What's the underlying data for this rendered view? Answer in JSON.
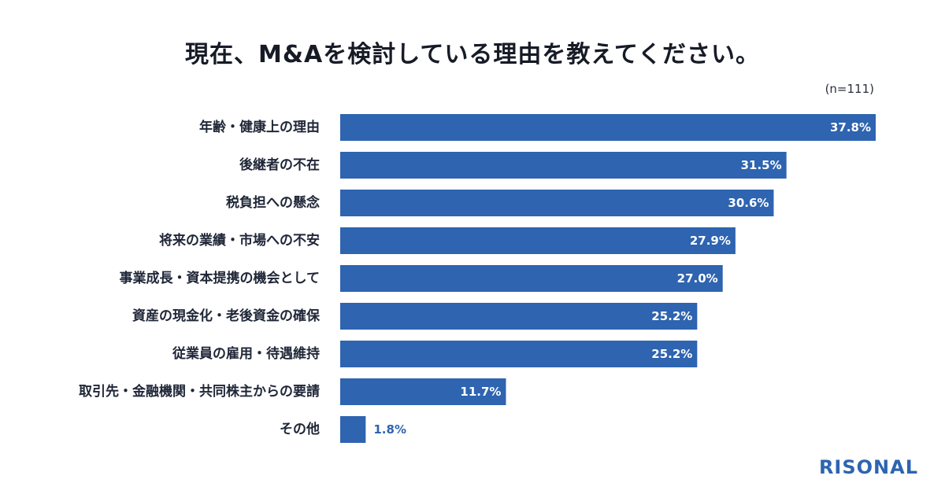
{
  "chart_data": {
    "type": "bar",
    "orientation": "horizontal",
    "title": "現在、M&Aを検討している理由を教えてください。",
    "sample_size": "(n=111)",
    "categories": [
      "年齢・健康上の理由",
      "後継者の不在",
      "税負担への懸念",
      "将来の業績・市場への不安",
      "事業成長・資本提携の機会として",
      "資産の現金化・老後資金の確保",
      "従業員の雇用・待遇維持",
      "取引先・金融機関・共同株主からの要請",
      "その他"
    ],
    "values": [
      37.8,
      31.5,
      30.6,
      27.9,
      27.0,
      25.2,
      25.2,
      11.7,
      1.8
    ],
    "value_labels": [
      "37.8%",
      "31.5%",
      "30.6%",
      "27.9%",
      "27.0%",
      "25.2%",
      "25.2%",
      "11.7%",
      "1.8%"
    ],
    "unit": "%",
    "xlim": [
      0,
      37.8
    ],
    "grid": false,
    "bar_color": "#2e64b0"
  },
  "brand": {
    "logo_text": "RISONAL",
    "color": "#2e64b0"
  }
}
